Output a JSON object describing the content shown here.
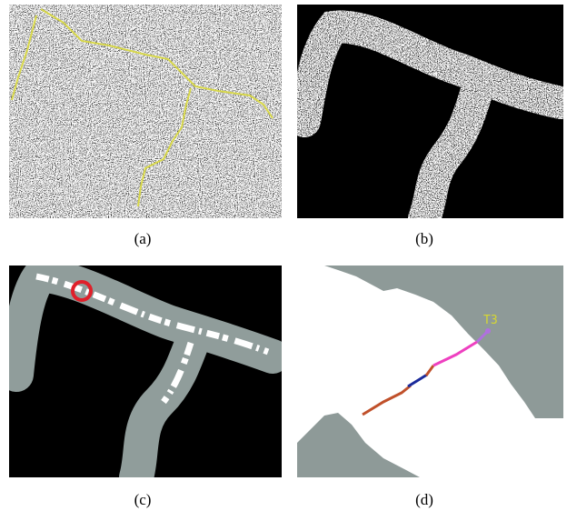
{
  "panels": [
    {
      "caption": "(a)"
    },
    {
      "caption": "(b)"
    },
    {
      "caption": "(c)"
    },
    {
      "caption": "(d)",
      "annotation": "T3"
    }
  ]
}
